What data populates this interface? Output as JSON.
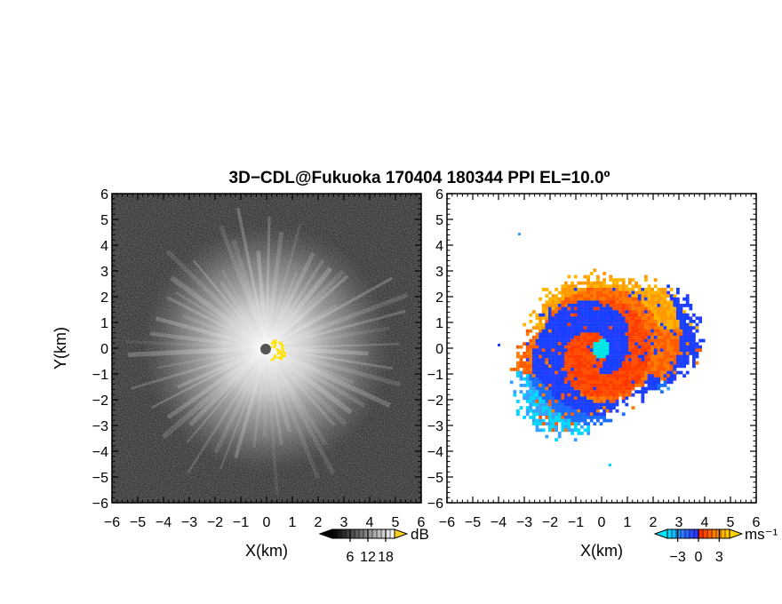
{
  "chart_data": {
    "type": "heatmap",
    "title": "3D−CDL@Fukuoka 170404 180344 PPI EL=10.0º",
    "panels": [
      {
        "id": "intensity",
        "field": "radial intensity (PPI)",
        "xlabel": "X(km)",
        "ylabel": "Y(km)",
        "xlim": [
          -6,
          6
        ],
        "ylim": [
          -6,
          6
        ],
        "xticks": [
          "−6",
          "−5",
          "−4",
          "−3",
          "−2",
          "−1",
          "0",
          "1",
          "2",
          "3",
          "4",
          "5",
          "6"
        ],
        "yticks": [
          "6",
          "5",
          "4",
          "3",
          "2",
          "1",
          "0",
          "−1",
          "−2",
          "−3",
          "−4",
          "−5",
          "−6"
        ],
        "colormap": "grayscale",
        "colorbar": {
          "ticks": [
            "6",
            "12",
            "18"
          ],
          "values": [
            6,
            12,
            18
          ],
          "range": [
            0,
            21
          ],
          "unit": "dB"
        }
      },
      {
        "id": "doppler",
        "field": "radial velocity (PPI)",
        "xlabel": "X(km)",
        "ylabel": "",
        "xlim": [
          -6,
          6
        ],
        "ylim": [
          -6,
          6
        ],
        "xticks": [
          "−6",
          "−5",
          "−4",
          "−3",
          "−2",
          "−1",
          "0",
          "1",
          "2",
          "3",
          "4",
          "5",
          "6"
        ],
        "yticks": [
          "6",
          "5",
          "4",
          "3",
          "2",
          "1",
          "0",
          "−1",
          "−2",
          "−3",
          "−4",
          "−5",
          "−6"
        ],
        "colormap": "cyan-blue-red-orange-yellow",
        "colorbar": {
          "ticks": [
            "−3",
            "0",
            "3"
          ],
          "values": [
            -3,
            0,
            3
          ],
          "range": [
            -4.5,
            4.5
          ],
          "unit": "ms⁻¹"
        }
      }
    ]
  },
  "colors": {
    "cyan": "#00e5ff",
    "blue": "#1a5cff",
    "red": "#ff2a00",
    "orange": "#ff7f00",
    "yellow": "#ffd21a",
    "radar_site_left": "#555555",
    "radar_site_right": "#00e5e5"
  }
}
